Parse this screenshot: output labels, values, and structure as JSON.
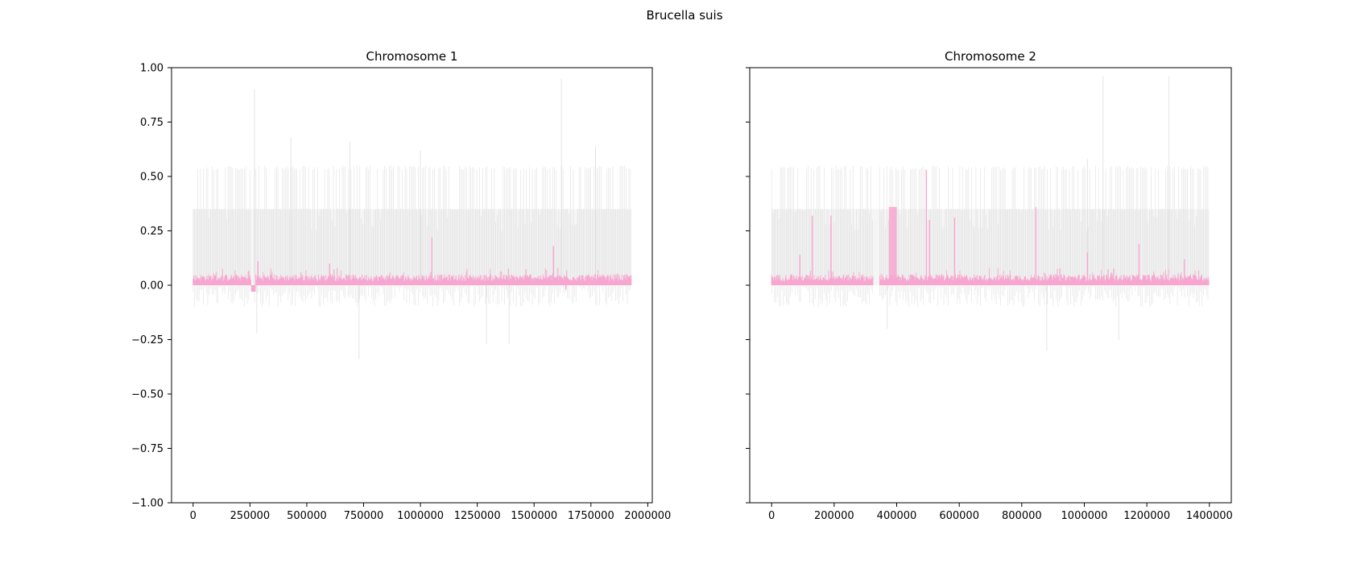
{
  "figure": {
    "suptitle": "Brucella suis"
  },
  "colors": {
    "signal": "#f7a6d0",
    "background_track": "#c8c8c8",
    "axis": "#000000"
  },
  "chart_data": [
    {
      "type": "line",
      "title": "Chromosome 1",
      "xlabel": "",
      "ylabel": "",
      "xlim": [
        -95000,
        2020000
      ],
      "ylim": [
        -1.0,
        1.0
      ],
      "x_extent": [
        0,
        1930000
      ],
      "xticks": [
        0,
        250000,
        500000,
        750000,
        1000000,
        1250000,
        1500000,
        1750000,
        2000000
      ],
      "xtick_labels": [
        "0",
        "250000",
        "500000",
        "750000",
        "1000000",
        "1250000",
        "1500000",
        "1750000",
        "2000000"
      ],
      "yticks": [
        -1.0,
        -0.75,
        -0.5,
        -0.25,
        0.0,
        0.25,
        0.5,
        0.75,
        1.0
      ],
      "ytick_labels": [
        "−1.00",
        "−0.75",
        "−0.50",
        "−0.25",
        "0.00",
        "0.25",
        "0.50",
        "0.75",
        "1.00"
      ],
      "grid": false,
      "series": [
        {
          "role": "background",
          "color": "#c8c8c8",
          "band_top": 0.55,
          "band_mid": 0.35,
          "band_low": -0.1,
          "gap_x": [
            255000,
            270000
          ],
          "spikes": [
            [
              270000,
              0.9
            ],
            [
              430000,
              0.68
            ],
            [
              690000,
              0.66
            ],
            [
              1000000,
              0.62
            ],
            [
              1620000,
              0.95
            ],
            [
              1770000,
              0.64
            ],
            [
              280000,
              -0.22
            ],
            [
              730000,
              -0.34
            ],
            [
              1290000,
              -0.27
            ],
            [
              1390000,
              -0.27
            ]
          ]
        },
        {
          "role": "signal",
          "color": "#f7a6d0",
          "base_low": 0.0,
          "base_high": 0.05,
          "dip_x": [
            255000,
            275000
          ],
          "dip_y": -0.03,
          "peaks": [
            [
              285000,
              0.11
            ],
            [
              600000,
              0.1
            ],
            [
              1050000,
              0.22
            ],
            [
              1585000,
              0.18
            ],
            [
              1640000,
              -0.02
            ]
          ]
        }
      ]
    },
    {
      "type": "line",
      "title": "Chromosome 2",
      "xlabel": "",
      "ylabel": "",
      "xlim": [
        -70000,
        1470000
      ],
      "ylim": [
        -1.0,
        1.0
      ],
      "x_extent": [
        0,
        1400000
      ],
      "xticks": [
        0,
        200000,
        400000,
        600000,
        800000,
        1000000,
        1200000,
        1400000
      ],
      "xtick_labels": [
        "0",
        "200000",
        "400000",
        "600000",
        "800000",
        "1000000",
        "1200000",
        "1400000"
      ],
      "yticks": [
        -1.0,
        -0.75,
        -0.5,
        -0.25,
        0.0,
        0.25,
        0.5,
        0.75,
        1.0
      ],
      "ytick_labels": [
        "",
        "",
        "",
        "",
        "",
        "",
        "",
        "",
        ""
      ],
      "grid": false,
      "series": [
        {
          "role": "background",
          "color": "#c8c8c8",
          "band_top": 0.55,
          "band_mid": 0.35,
          "band_low": -0.1,
          "gap_x": [
            325000,
            345000
          ],
          "spikes": [
            [
              1010000,
              0.58
            ],
            [
              1060000,
              0.96
            ],
            [
              1270000,
              0.96
            ],
            [
              370000,
              -0.2
            ],
            [
              880000,
              -0.3
            ],
            [
              1110000,
              -0.25
            ]
          ]
        },
        {
          "role": "signal",
          "color": "#f7a6d0",
          "base_low": 0.0,
          "base_high": 0.05,
          "dip_x": [
            325000,
            345000
          ],
          "dip_y": 0.0,
          "block_x": [
            375000,
            400000
          ],
          "block_y": 0.36,
          "peaks": [
            [
              90000,
              0.14
            ],
            [
              130000,
              0.32
            ],
            [
              190000,
              0.32
            ],
            [
              495000,
              0.53
            ],
            [
              505000,
              0.3
            ],
            [
              585000,
              0.31
            ],
            [
              845000,
              0.36
            ],
            [
              1010000,
              0.15
            ],
            [
              1175000,
              0.19
            ],
            [
              1320000,
              0.12
            ]
          ]
        }
      ]
    }
  ]
}
